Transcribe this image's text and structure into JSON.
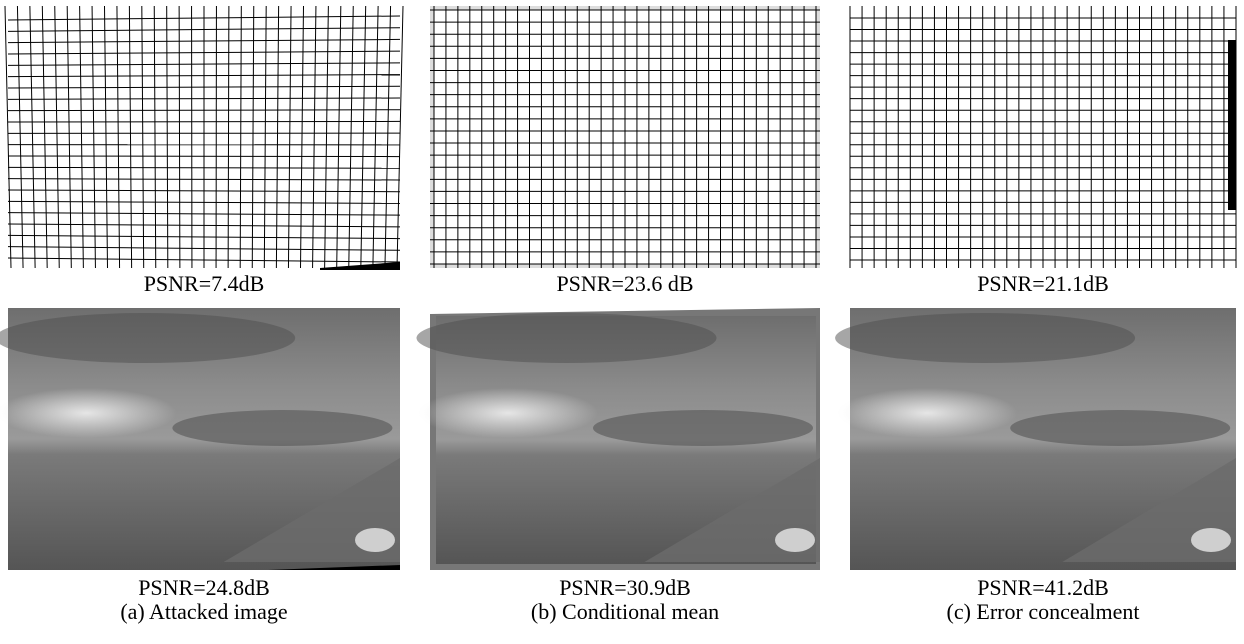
{
  "panels": [
    {
      "grid_psnr": "PSNR=7.4dB",
      "photo_psnr": "PSNR=24.8dB",
      "caption": "(a) Attacked image"
    },
    {
      "grid_psnr": "PSNR=23.6 dB",
      "photo_psnr": "PSNR=30.9dB",
      "caption": "(b) Conditional mean"
    },
    {
      "grid_psnr": "PSNR=21.1dB",
      "photo_psnr": "PSNR=41.2dB",
      "caption": "(c) Error concealment"
    }
  ]
}
